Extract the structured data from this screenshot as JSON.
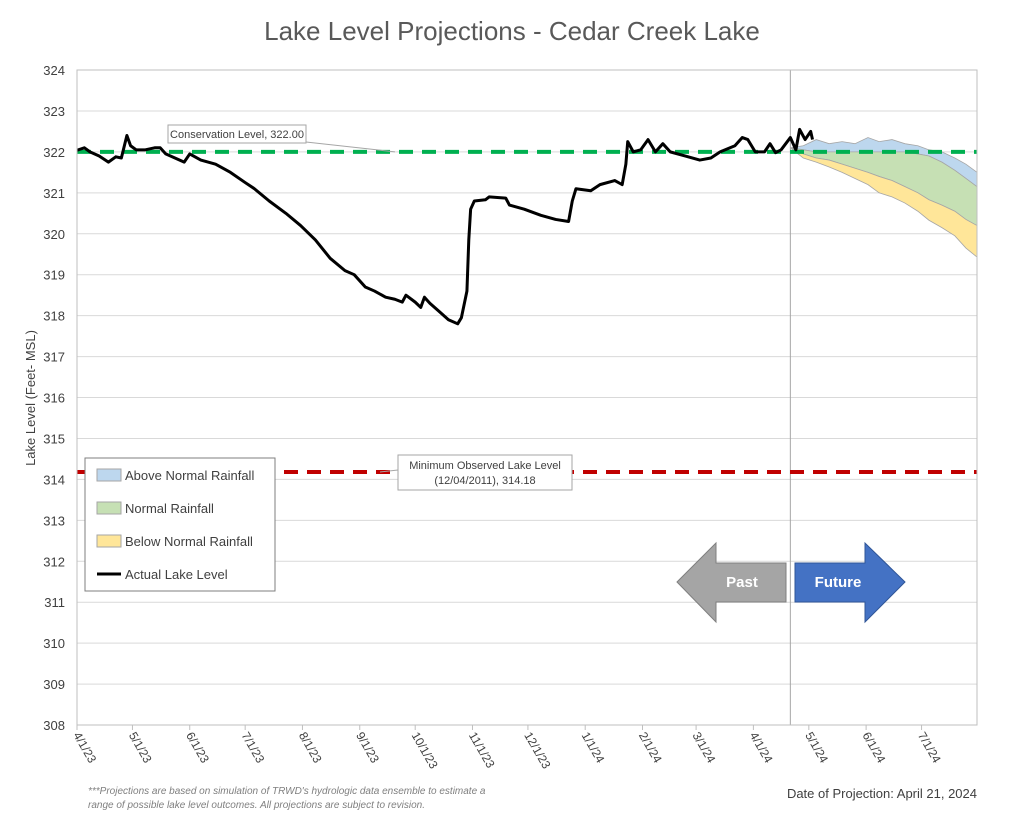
{
  "chart_data": {
    "type": "line",
    "title": "Lake Level Projections - Cedar Creek Lake",
    "ylabel": "Lake Level (Feet- MSL)",
    "xlabel": "",
    "ylim": [
      308,
      324
    ],
    "yticks": [
      308,
      309,
      310,
      311,
      312,
      313,
      314,
      315,
      316,
      317,
      318,
      319,
      320,
      321,
      322,
      323,
      324
    ],
    "xlim": [
      "2023-04-01",
      "2024-07-31"
    ],
    "xticks": [
      "4/1/23",
      "5/1/23",
      "6/1/23",
      "7/1/23",
      "8/1/23",
      "9/1/23",
      "10/1/23",
      "11/1/23",
      "12/1/23",
      "1/1/24",
      "2/1/24",
      "3/1/24",
      "4/1/24",
      "5/1/24",
      "6/1/24",
      "7/1/24"
    ],
    "xtick_dates": [
      "2023-04-01",
      "2023-05-01",
      "2023-06-01",
      "2023-07-01",
      "2023-08-01",
      "2023-09-01",
      "2023-10-01",
      "2023-11-01",
      "2023-12-01",
      "2024-01-01",
      "2024-02-01",
      "2024-03-01",
      "2024-04-01",
      "2024-05-01",
      "2024-06-01",
      "2024-07-01"
    ],
    "grid": true,
    "legend_position": "left",
    "legend": [
      "Above Normal Rainfall",
      "Normal Rainfall",
      "Below Normal Rainfall",
      "Actual Lake Level"
    ],
    "colors": {
      "above": "#bdd7ee",
      "normal": "#c6e0b4",
      "below": "#ffe699",
      "actual": "#000000",
      "conservation": "#00b050",
      "minimum": "#c00000",
      "past": "#a5a5a5",
      "future": "#4472c4"
    },
    "actual": [
      [
        "2023-04-01",
        322.04
      ],
      [
        "2023-04-05",
        322.1
      ],
      [
        "2023-04-08",
        322.0
      ],
      [
        "2023-04-13",
        321.9
      ],
      [
        "2023-04-18",
        321.75
      ],
      [
        "2023-04-22",
        321.88
      ],
      [
        "2023-04-25",
        321.85
      ],
      [
        "2023-04-28",
        322.4
      ],
      [
        "2023-04-30",
        322.15
      ],
      [
        "2023-05-03",
        322.05
      ],
      [
        "2023-05-08",
        322.05
      ],
      [
        "2023-05-13",
        322.1
      ],
      [
        "2023-05-16",
        322.1
      ],
      [
        "2023-05-19",
        321.95
      ],
      [
        "2023-05-24",
        321.85
      ],
      [
        "2023-05-29",
        321.75
      ],
      [
        "2023-06-01",
        321.95
      ],
      [
        "2023-06-07",
        321.8
      ],
      [
        "2023-06-15",
        321.7
      ],
      [
        "2023-06-23",
        321.5
      ],
      [
        "2023-07-01",
        321.25
      ],
      [
        "2023-07-06",
        321.1
      ],
      [
        "2023-07-14",
        320.8
      ],
      [
        "2023-07-23",
        320.5
      ],
      [
        "2023-07-31",
        320.2
      ],
      [
        "2023-08-08",
        319.85
      ],
      [
        "2023-08-16",
        319.4
      ],
      [
        "2023-08-24",
        319.1
      ],
      [
        "2023-08-29",
        319.0
      ],
      [
        "2023-09-04",
        318.7
      ],
      [
        "2023-09-09",
        318.6
      ],
      [
        "2023-09-15",
        318.45
      ],
      [
        "2023-09-20",
        318.4
      ],
      [
        "2023-09-24",
        318.33
      ],
      [
        "2023-09-26",
        318.5
      ],
      [
        "2023-10-01",
        318.33
      ],
      [
        "2023-10-04",
        318.2
      ],
      [
        "2023-10-06",
        318.45
      ],
      [
        "2023-10-09",
        318.3
      ],
      [
        "2023-10-14",
        318.1
      ],
      [
        "2023-10-19",
        317.9
      ],
      [
        "2023-10-24",
        317.8
      ],
      [
        "2023-10-26",
        317.95
      ],
      [
        "2023-10-29",
        318.6
      ],
      [
        "2023-10-30",
        319.85
      ],
      [
        "2023-10-31",
        320.6
      ],
      [
        "2023-11-02",
        320.8
      ],
      [
        "2023-11-08",
        320.83
      ],
      [
        "2023-11-10",
        320.9
      ],
      [
        "2023-11-19",
        320.87
      ],
      [
        "2023-11-21",
        320.7
      ],
      [
        "2023-11-29",
        320.6
      ],
      [
        "2023-12-08",
        320.45
      ],
      [
        "2023-12-16",
        320.35
      ],
      [
        "2023-12-23",
        320.3
      ],
      [
        "2023-12-25",
        320.8
      ],
      [
        "2023-12-27",
        321.1
      ],
      [
        "2024-01-04",
        321.05
      ],
      [
        "2024-01-09",
        321.2
      ],
      [
        "2024-01-17",
        321.3
      ],
      [
        "2024-01-21",
        321.2
      ],
      [
        "2024-01-23",
        321.7
      ],
      [
        "2024-01-24",
        322.25
      ],
      [
        "2024-01-27",
        322.0
      ],
      [
        "2024-01-31",
        322.05
      ],
      [
        "2024-02-04",
        322.3
      ],
      [
        "2024-02-08",
        322.0
      ],
      [
        "2024-02-12",
        322.2
      ],
      [
        "2024-02-16",
        322.0
      ],
      [
        "2024-02-24",
        321.9
      ],
      [
        "2024-03-03",
        321.8
      ],
      [
        "2024-03-09",
        321.85
      ],
      [
        "2024-03-14",
        322.0
      ],
      [
        "2024-03-22",
        322.15
      ],
      [
        "2024-03-26",
        322.35
      ],
      [
        "2024-03-29",
        322.3
      ],
      [
        "2024-04-02",
        322.0
      ],
      [
        "2024-04-07",
        322.0
      ],
      [
        "2024-04-10",
        322.2
      ],
      [
        "2024-04-13",
        321.98
      ],
      [
        "2024-04-16",
        322.05
      ],
      [
        "2024-04-21",
        322.35
      ],
      [
        "2024-04-24",
        322.05
      ],
      [
        "2024-04-26",
        322.55
      ],
      [
        "2024-04-29",
        322.3
      ],
      [
        "2024-05-02",
        322.5
      ],
      [
        "2024-05-03",
        322.3
      ]
    ],
    "projection_dates": [
      "2024-04-21",
      "2024-04-28",
      "2024-05-05",
      "2024-05-12",
      "2024-05-19",
      "2024-05-26",
      "2024-06-02",
      "2024-06-08",
      "2024-06-15",
      "2024-06-22",
      "2024-06-29",
      "2024-07-05",
      "2024-07-12",
      "2024-07-19",
      "2024-07-25",
      "2024-07-31"
    ],
    "above_normal_upper": [
      322.1,
      322.15,
      322.3,
      322.2,
      322.25,
      322.2,
      322.35,
      322.25,
      322.3,
      322.2,
      322.15,
      322.05,
      322.0,
      321.85,
      321.7,
      321.5
    ],
    "normal_upper": [
      322.1,
      322.05,
      322.0,
      322.0,
      322.0,
      322.0,
      322.0,
      322.0,
      322.0,
      322.0,
      321.95,
      321.9,
      321.75,
      321.55,
      321.35,
      321.15
    ],
    "below_normal_upper": [
      322.1,
      321.95,
      321.85,
      321.8,
      321.7,
      321.6,
      321.5,
      321.4,
      321.3,
      321.15,
      321.0,
      320.83,
      320.7,
      320.55,
      320.35,
      320.2
    ],
    "below_normal_lower": [
      322.1,
      321.85,
      321.75,
      321.63,
      321.5,
      321.35,
      321.2,
      321.0,
      320.9,
      320.75,
      320.55,
      320.33,
      320.15,
      319.95,
      319.65,
      319.43
    ],
    "reference_lines": [
      {
        "label": "Conservation Level, 322.00",
        "value": 322.0
      },
      {
        "label_line1": "Minimum Observed Lake Level",
        "label_line2": "(12/04/2011), 314.18",
        "value": 314.18
      }
    ],
    "projection_date": "2024-04-21",
    "arrows": {
      "past": "Past",
      "future": "Future"
    }
  },
  "footnote_line1": "***Projections are based on simulation of TRWD's hydrologic data ensemble to estimate a",
  "footnote_line2": "range of possible lake level outcomes.  All projections are subject to revision.",
  "date_of_projection": "Date of Projection: April 21, 2024"
}
